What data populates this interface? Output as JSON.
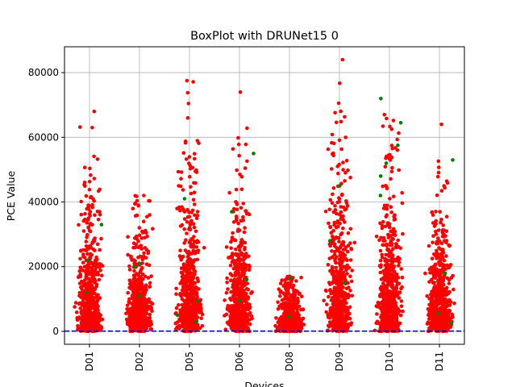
{
  "chart_data": {
    "type": "scatter",
    "title": "BoxPlot with DRUNet15 0",
    "xlabel": "Devices",
    "ylabel": "PCE Value",
    "categories": [
      "D01",
      "D02",
      "D05",
      "D06",
      "D08",
      "D09",
      "D10",
      "D11"
    ],
    "ylim": [
      -4000,
      88000
    ],
    "yticks": [
      0,
      20000,
      40000,
      60000,
      80000
    ],
    "ytick_labels": [
      "0",
      "20000",
      "40000",
      "60000",
      "80000"
    ],
    "grid": true,
    "threshold_line": {
      "value": 60,
      "style": "dashed",
      "color": "#0000cc"
    },
    "series": [
      {
        "color": "#ff0000",
        "marker": "dot",
        "points_per_device": 600,
        "max_values": [
          68000,
          42000,
          77500,
          74000,
          17000,
          84000,
          67000,
          64000
        ],
        "median_values": [
          8000,
          6000,
          9000,
          8000,
          3000,
          10000,
          9000,
          7000
        ]
      },
      {
        "color": "#008000",
        "marker": "dot",
        "points": [
          [
            "D01",
            22000
          ],
          [
            "D01",
            33000
          ],
          [
            "D01",
            12000
          ],
          [
            "D02",
            20000
          ],
          [
            "D02",
            21000
          ],
          [
            "D02",
            11000
          ],
          [
            "D05",
            41000
          ],
          [
            "D05",
            9500
          ],
          [
            "D05",
            5000
          ],
          [
            "D05",
            3000
          ],
          [
            "D06",
            55000
          ],
          [
            "D06",
            37000
          ],
          [
            "D06",
            9500
          ],
          [
            "D06",
            16000
          ],
          [
            "D08",
            16500
          ],
          [
            "D08",
            4500
          ],
          [
            "D09",
            45000
          ],
          [
            "D09",
            28000
          ],
          [
            "D09",
            15000
          ],
          [
            "D10",
            72000
          ],
          [
            "D10",
            64500
          ],
          [
            "D10",
            57500
          ],
          [
            "D10",
            52000
          ],
          [
            "D10",
            48000
          ],
          [
            "D10",
            42000
          ],
          [
            "D11",
            53000
          ],
          [
            "D11",
            5500
          ],
          [
            "D11",
            2500
          ],
          [
            "D11",
            18000
          ]
        ]
      }
    ]
  }
}
